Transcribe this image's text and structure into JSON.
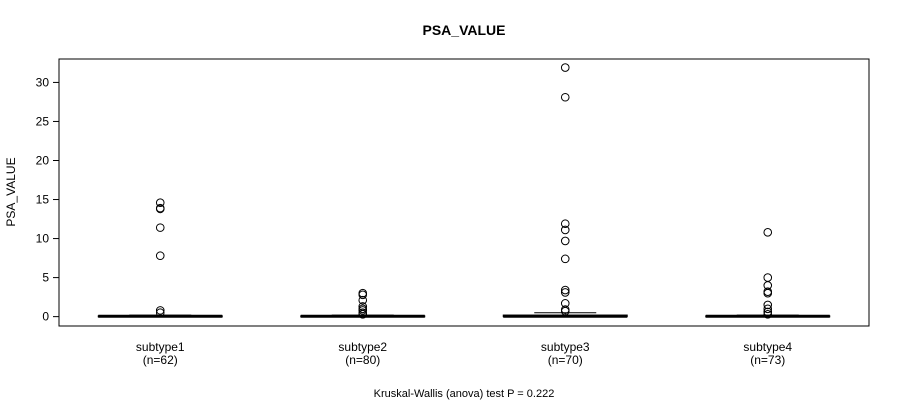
{
  "chart_data": {
    "type": "boxplot",
    "title": "PSA_VALUE",
    "ylabel": "PSA_VALUE",
    "xlabel": "",
    "ylim": [
      -1.2,
      33
    ],
    "yticks": [
      0,
      5,
      10,
      15,
      20,
      25,
      30
    ],
    "grid": false,
    "test_label": "Kruskal-Wallis (anova) test P = 0.222",
    "groups": [
      {
        "name": "subtype1",
        "n_label": "(n=62)",
        "q1": 0.0,
        "median": 0.05,
        "q3": 0.1,
        "whisker_low": 0.0,
        "whisker_high": 0.2,
        "outliers": [
          14.6,
          13.9,
          13.8,
          11.4,
          7.8,
          0.8,
          0.5
        ]
      },
      {
        "name": "subtype2",
        "n_label": "(n=80)",
        "q1": 0.0,
        "median": 0.05,
        "q3": 0.1,
        "whisker_low": 0.0,
        "whisker_high": 0.2,
        "outliers": [
          3.0,
          2.8,
          2.1,
          1.3,
          1.0,
          0.8,
          0.5,
          0.3
        ]
      },
      {
        "name": "subtype3",
        "n_label": "(n=70)",
        "q1": 0.0,
        "median": 0.05,
        "q3": 0.2,
        "whisker_low": 0.0,
        "whisker_high": 0.5,
        "outliers": [
          31.9,
          28.1,
          11.9,
          11.1,
          9.7,
          7.4,
          3.4,
          3.1,
          1.7,
          0.9,
          0.7
        ]
      },
      {
        "name": "subtype4",
        "n_label": "(n=73)",
        "q1": 0.0,
        "median": 0.05,
        "q3": 0.1,
        "whisker_low": 0.0,
        "whisker_high": 0.2,
        "outliers": [
          10.8,
          5.0,
          4.0,
          3.2,
          3.0,
          1.5,
          1.0,
          0.6,
          0.3
        ]
      }
    ]
  }
}
